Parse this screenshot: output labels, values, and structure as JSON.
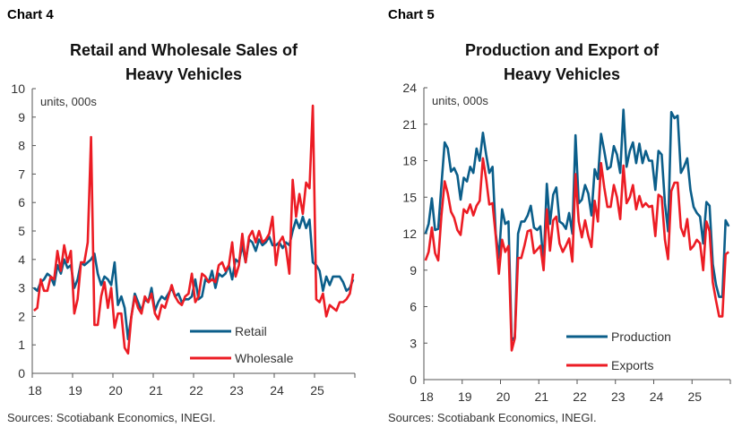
{
  "chart_data": [
    {
      "type": "line",
      "label": "Chart 4",
      "title": [
        "Retail and Wholesale Sales of",
        "Heavy Vehicles"
      ],
      "units": "units, 000s",
      "source": "Sources: Scotiabank Economics, INEGI.",
      "x_tick_labels": [
        "18",
        "19",
        "20",
        "21",
        "22",
        "23",
        "24",
        "25"
      ],
      "x_start": "2018-01",
      "frequency": "monthly",
      "ylim": [
        0,
        10
      ],
      "y_ticks": [
        0,
        1,
        2,
        3,
        4,
        5,
        6,
        7,
        8,
        9,
        10
      ],
      "legend_position": "bottom-right",
      "grid": false,
      "series": [
        {
          "name": "Retail",
          "color": "#0b5e8a",
          "values": [
            3.0,
            2.9,
            3.2,
            3.3,
            3.5,
            3.4,
            3.1,
            3.8,
            3.5,
            4.0,
            3.7,
            3.8,
            3.0,
            3.3,
            3.9,
            3.8,
            3.9,
            4.0,
            4.2,
            3.5,
            3.1,
            3.4,
            3.3,
            3.1,
            3.9,
            2.4,
            2.7,
            2.3,
            1.2,
            2.0,
            2.8,
            2.5,
            2.2,
            2.6,
            2.5,
            3.0,
            2.2,
            2.5,
            2.7,
            2.6,
            2.8,
            3.0,
            2.7,
            2.8,
            2.5,
            2.6,
            2.6,
            2.7,
            3.3,
            2.6,
            2.7,
            3.3,
            3.2,
            3.6,
            3.0,
            3.5,
            3.4,
            3.5,
            3.8,
            3.3,
            4.0,
            3.9,
            4.5,
            3.9,
            4.7,
            4.6,
            4.3,
            4.7,
            4.5,
            4.6,
            4.8,
            4.5,
            4.5,
            4.6,
            4.4,
            4.6,
            4.5,
            5.0,
            5.4,
            5.1,
            5.5,
            5.1,
            5.4,
            3.9,
            3.8,
            3.6,
            2.9,
            3.4,
            3.1,
            3.4,
            3.4,
            3.4,
            3.2,
            2.9,
            3.0,
            3.3
          ]
        },
        {
          "name": "Wholesale",
          "color": "#ec1c24",
          "values": [
            2.2,
            2.3,
            3.3,
            2.9,
            2.9,
            3.4,
            3.3,
            4.3,
            3.6,
            4.5,
            3.9,
            4.3,
            2.1,
            2.6,
            3.9,
            3.9,
            4.6,
            8.3,
            1.7,
            1.7,
            2.7,
            3.2,
            2.3,
            3.0,
            1.6,
            2.1,
            2.1,
            0.9,
            0.7,
            2.0,
            2.7,
            2.3,
            2.1,
            2.7,
            2.5,
            2.8,
            2.1,
            1.9,
            2.4,
            2.3,
            2.7,
            3.1,
            2.7,
            2.5,
            2.4,
            2.7,
            2.8,
            3.5,
            2.5,
            2.7,
            3.5,
            3.4,
            3.2,
            3.3,
            3.2,
            3.8,
            3.9,
            3.6,
            3.8,
            4.6,
            3.4,
            3.8,
            4.9,
            3.9,
            4.8,
            5.0,
            4.6,
            5.0,
            4.6,
            4.7,
            4.9,
            5.5,
            3.8,
            4.6,
            4.8,
            4.4,
            3.5,
            6.8,
            5.5,
            6.3,
            5.6,
            6.7,
            6.5,
            9.4,
            2.6,
            2.5,
            2.8,
            2.0,
            2.4,
            2.3,
            2.2,
            2.5,
            2.5,
            2.6,
            2.8,
            3.5
          ]
        }
      ]
    },
    {
      "type": "line",
      "label": "Chart 5",
      "title": [
        "Production and Export of",
        "Heavy Vehicles"
      ],
      "units": "units, 000s",
      "source": "Sources: Scotiabank Economics, INEGI.",
      "x_tick_labels": [
        "18",
        "19",
        "20",
        "21",
        "22",
        "23",
        "24",
        "25"
      ],
      "x_start": "2018-01",
      "frequency": "monthly",
      "ylim": [
        0,
        24
      ],
      "y_ticks": [
        0,
        3,
        6,
        9,
        12,
        15,
        18,
        21,
        24
      ],
      "legend_position": "bottom-right",
      "grid": false,
      "series": [
        {
          "name": "Production",
          "color": "#0b5e8a",
          "values": [
            12,
            12.8,
            14.9,
            12.3,
            12.4,
            16,
            19.5,
            19,
            17.1,
            17.4,
            16.8,
            14.8,
            16.6,
            16.3,
            17.5,
            17,
            19,
            18,
            20.3,
            18.5,
            17,
            17.5,
            12,
            10,
            14,
            12.8,
            13,
            3.2,
            3.5,
            12,
            13,
            13,
            13.5,
            14.3,
            12.5,
            12.3,
            12.6,
            9.5,
            16.1,
            12.8,
            15.2,
            15.8,
            13,
            12.8,
            12.4,
            13.7,
            12,
            20.1,
            14.5,
            14.8,
            16,
            15.3,
            13.5,
            17.3,
            16.5,
            20.2,
            18.8,
            17.3,
            17.5,
            19.2,
            18.5,
            17,
            22.2,
            17.5,
            18.8,
            19.5,
            17.8,
            19.4,
            17.8,
            18.8,
            18,
            18,
            15.6,
            18.8,
            18.5,
            14.5,
            12.2,
            22,
            21.5,
            21.7,
            17,
            17.5,
            18.2,
            15.6,
            14.2,
            13.7,
            13.4,
            11.2,
            14.6,
            14.3,
            9.5,
            7.8,
            6.8,
            6.8,
            13.1,
            12.6
          ]
        },
        {
          "name": "Exports",
          "color": "#ec1c24",
          "values": [
            9.8,
            10.5,
            12.5,
            10.4,
            9.8,
            13.5,
            16.3,
            15.3,
            13.8,
            13.3,
            12.3,
            11.9,
            14,
            13.7,
            14.4,
            13.5,
            14.3,
            14.7,
            18.2,
            16.5,
            14.4,
            14.5,
            11.8,
            8.7,
            11.5,
            10.5,
            11,
            2.4,
            3.4,
            10,
            10,
            11,
            12.2,
            12.3,
            10.4,
            10.7,
            11,
            9,
            14,
            10.6,
            13.1,
            13.4,
            11.2,
            10.5,
            11,
            11.6,
            9.7,
            16.9,
            13,
            11.7,
            13.1,
            11.8,
            10.9,
            14.7,
            13,
            17.8,
            15.8,
            14.2,
            14.2,
            16,
            15,
            13.2,
            17.6,
            14.5,
            15,
            16,
            14,
            15.1,
            14.2,
            14.5,
            14.2,
            14.3,
            11.8,
            15.2,
            15,
            11.5,
            9.9,
            15.5,
            16.2,
            16.2,
            12.5,
            11.8,
            13.2,
            10.7,
            11,
            11.5,
            11.2,
            9,
            13,
            12.2,
            8,
            6.5,
            5.2,
            5.2,
            10.3,
            10.5
          ]
        }
      ]
    }
  ]
}
